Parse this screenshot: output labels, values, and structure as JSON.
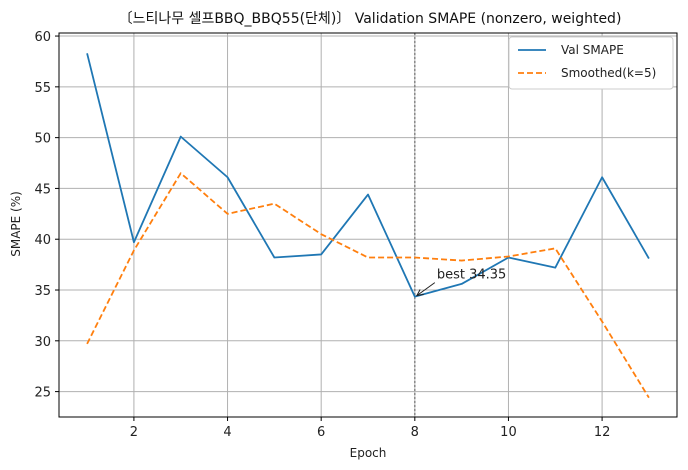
{
  "chart_data": {
    "type": "line",
    "title": "〔느티나무 셀프BBQ_BBQ55(단체)〕 Validation SMAPE (nonzero, weighted)",
    "xlabel": "Epoch",
    "ylabel": "SMAPE (%)",
    "x": [
      1,
      2,
      3,
      4,
      5,
      6,
      7,
      8,
      9,
      10,
      11,
      12,
      13
    ],
    "xlim": [
      0.4,
      13.6
    ],
    "ylim": [
      22.5,
      60.3
    ],
    "xticks": [
      2,
      4,
      6,
      8,
      10,
      12
    ],
    "yticks": [
      25,
      30,
      35,
      40,
      45,
      50,
      55,
      60
    ],
    "grid": true,
    "legend_position": "top-right",
    "series": [
      {
        "name": "Val SMAPE",
        "style": "solid",
        "color": "#1f77b4",
        "values": [
          58.3,
          39.7,
          50.1,
          46.1,
          38.2,
          38.5,
          44.4,
          34.35,
          35.6,
          38.2,
          37.2,
          46.1,
          38.1
        ]
      },
      {
        "name": "Smoothed(k=5)",
        "style": "dashed",
        "color": "#ff7f0e",
        "values": [
          29.7,
          38.9,
          46.5,
          42.5,
          43.5,
          40.5,
          38.2,
          38.2,
          37.9,
          38.3,
          39.1,
          31.9,
          24.4
        ]
      }
    ],
    "best_marker": {
      "epoch": 8,
      "value": 34.35,
      "label": "best 34.35"
    }
  }
}
